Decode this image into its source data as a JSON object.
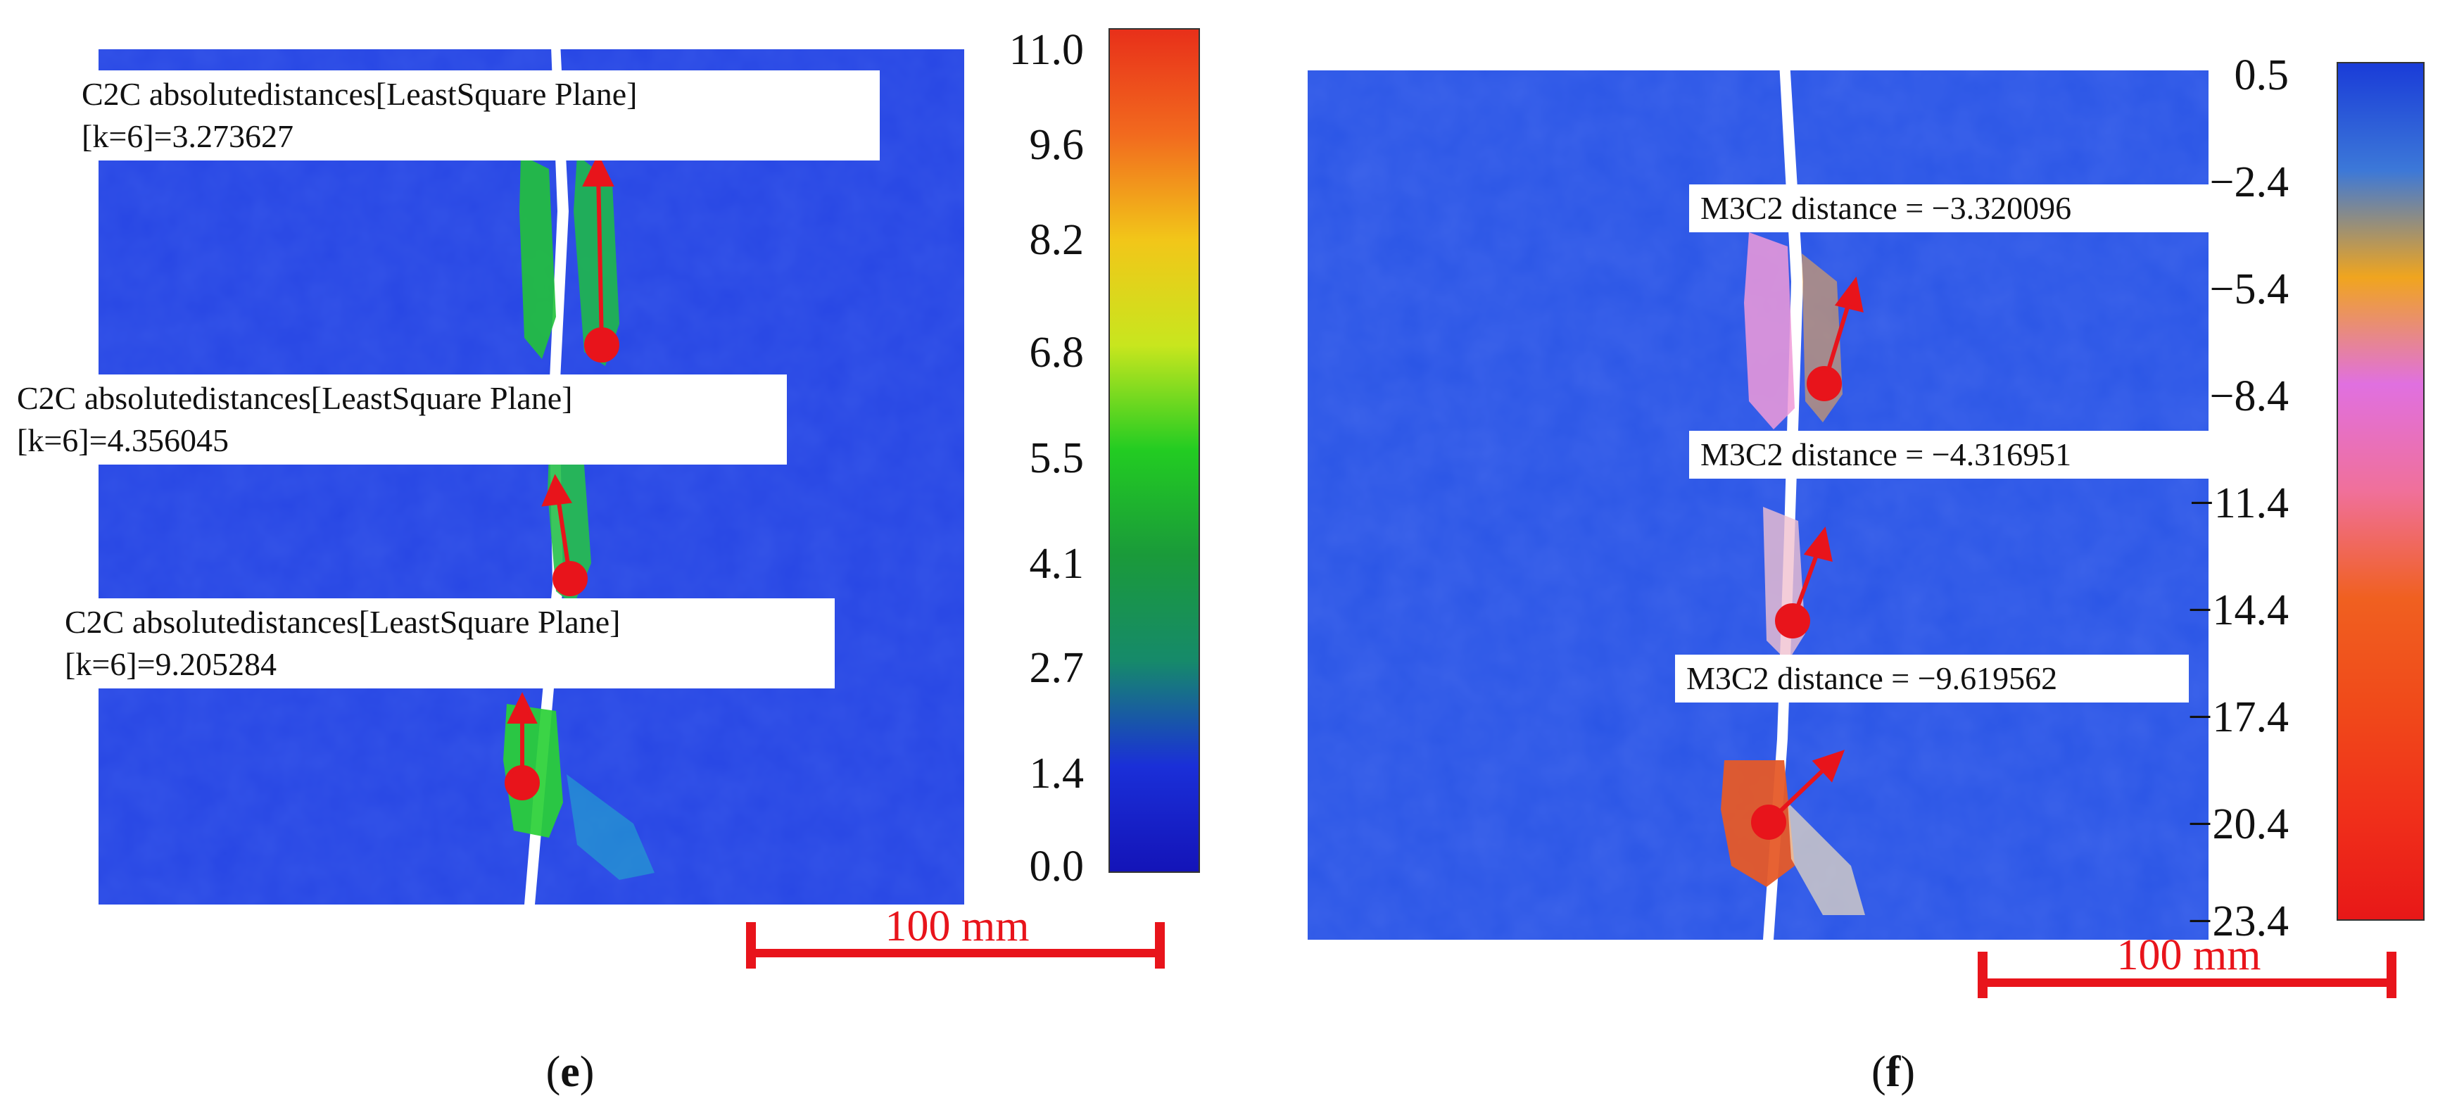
{
  "panels": [
    {
      "id": "e",
      "caption_letter": "e",
      "colorbar": {
        "ticks": [
          "11.0",
          "9.6",
          "8.2",
          "6.8",
          "5.5",
          "4.1",
          "2.7",
          "1.4",
          "0.0"
        ],
        "gradient": [
          "#e8301a",
          "#f26a1e",
          "#f2c619",
          "#c8e61e",
          "#22cc22",
          "#1a9a3a",
          "#168a6a",
          "#1a2fd8",
          "#1414b8"
        ]
      },
      "annotations": [
        {
          "line1": "C2C absolutedistances[LeastSquare Plane]",
          "line2": "[k=6]=3.273627"
        },
        {
          "line1": "C2C absolutedistances[LeastSquare Plane]",
          "line2": "[k=6]=4.356045"
        },
        {
          "line1": "C2C absolutedistances[LeastSquare Plane]",
          "line2": "[k=6]=9.205284"
        }
      ],
      "scale_bar": "100 mm"
    },
    {
      "id": "f",
      "caption_letter": "f",
      "colorbar": {
        "ticks": [
          "0.5",
          "−2.4",
          "−5.4",
          "−8.4",
          "−11.4",
          "−14.4",
          "−17.4",
          "−20.4",
          "−23.4"
        ],
        "gradient": [
          "#1a3cd8",
          "#3c78d8",
          "#f0a51e",
          "#e070e0",
          "#f0709a",
          "#f06020",
          "#f04a1a",
          "#f0301a",
          "#e81818"
        ]
      },
      "annotations": [
        {
          "line1": "M3C2 distance = −3.320096"
        },
        {
          "line1": "M3C2 distance = −4.316951"
        },
        {
          "line1": "M3C2 distance = −9.619562"
        }
      ],
      "scale_bar": "100 mm"
    }
  ],
  "colors": {
    "specimen_blue": "#2445e0",
    "marker_red": "#e8141b",
    "scale_red": "#e8141b"
  }
}
